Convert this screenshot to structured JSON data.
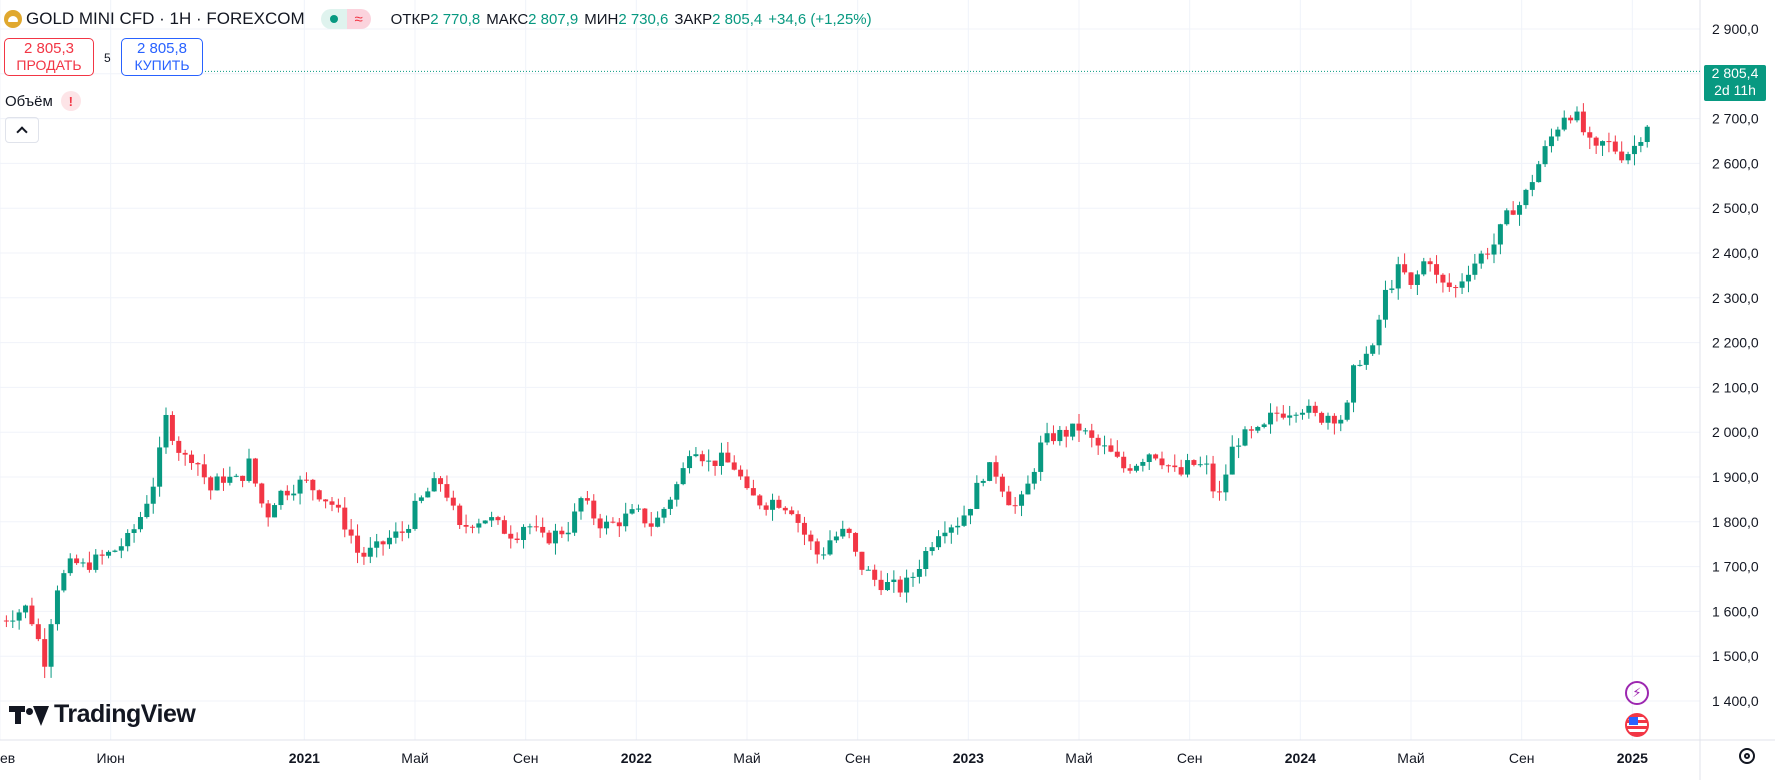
{
  "header": {
    "symbol_title": "GOLD MINI CFD · 1H · FOREXCOM",
    "ohlc": [
      {
        "key": "ОТКР",
        "value": "2 770,8"
      },
      {
        "key": "МАКС",
        "value": "2 807,9"
      },
      {
        "key": "МИН",
        "value": "2 730,6"
      },
      {
        "key": "ЗАКР",
        "value": "2 805,4"
      }
    ],
    "change": "+34,6 (+1,25%)",
    "pill_icon": "approx-icon"
  },
  "trade": {
    "sell_price": "2 805,3",
    "sell_label": "ПРОДАТЬ",
    "spread": "5",
    "buy_price": "2 805,8",
    "buy_label": "КУПИТЬ"
  },
  "volume_label": "Объём",
  "warning_mark": "!",
  "last_price_tag": {
    "price": "2 805,4",
    "countdown": "2d 11h"
  },
  "brand": "TradingView",
  "colors": {
    "up": "#089981",
    "down": "#f23645",
    "grid": "#f0f3fa",
    "text": "#131722"
  },
  "chart_data": {
    "type": "candlestick",
    "title": "",
    "xlabel": "",
    "ylabel": "",
    "y_range": [
      1350,
      2960
    ],
    "x_range": [
      "2020-02",
      "2025-03"
    ],
    "y_ticks": [
      "2 900,0",
      "2 800,0",
      "2 700,0",
      "2 600,0",
      "2 500,0",
      "2 400,0",
      "2 300,0",
      "2 200,0",
      "2 100,0",
      "2 000,0",
      "1 900,0",
      "1 800,0",
      "1 700,0",
      "1 600,0",
      "1 500,0",
      "1 400,0"
    ],
    "x_ticks": [
      {
        "t": "2020-02",
        "label": "ев"
      },
      {
        "t": "2020-06",
        "label": "Июн"
      },
      {
        "t": "2021-01",
        "label": "2021"
      },
      {
        "t": "2021-05",
        "label": "Май"
      },
      {
        "t": "2021-09",
        "label": "Сен"
      },
      {
        "t": "2022-01",
        "label": "2022"
      },
      {
        "t": "2022-05",
        "label": "Май"
      },
      {
        "t": "2022-09",
        "label": "Сен"
      },
      {
        "t": "2023-01",
        "label": "2023"
      },
      {
        "t": "2023-05",
        "label": "Май"
      },
      {
        "t": "2023-09",
        "label": "Сен"
      },
      {
        "t": "2024-01",
        "label": "2024"
      },
      {
        "t": "2024-05",
        "label": "Май"
      },
      {
        "t": "2024-09",
        "label": "Сен"
      },
      {
        "t": "2025-01",
        "label": "2025"
      }
    ],
    "bold_x_labels": [
      "2021",
      "2022",
      "2023",
      "2024",
      "2025"
    ],
    "last_price": 2805.4,
    "grid": true,
    "path_points": [
      [
        "2020-02",
        1580
      ],
      [
        "2020-03",
        1610
      ],
      [
        "2020-03-20",
        1490
      ],
      [
        "2020-04",
        1650
      ],
      [
        "2020-04-20",
        1710
      ],
      [
        "2020-05",
        1700
      ],
      [
        "2020-06",
        1730
      ],
      [
        "2020-06-20",
        1760
      ],
      [
        "2020-07",
        1800
      ],
      [
        "2020-07-20",
        1900
      ],
      [
        "2020-08",
        2030
      ],
      [
        "2020-08-20",
        1940
      ],
      [
        "2020-09",
        1950
      ],
      [
        "2020-09-20",
        1870
      ],
      [
        "2020-10",
        1900
      ],
      [
        "2020-10-20",
        1890
      ],
      [
        "2020-11",
        1930
      ],
      [
        "2020-11-20",
        1810
      ],
      [
        "2020-12",
        1860
      ],
      [
        "2020-12-20",
        1880
      ],
      [
        "2021-01",
        1890
      ],
      [
        "2021-01-20",
        1860
      ],
      [
        "2021-02",
        1840
      ],
      [
        "2021-02-20",
        1780
      ],
      [
        "2021-03",
        1720
      ],
      [
        "2021-03-20",
        1740
      ],
      [
        "2021-04",
        1760
      ],
      [
        "2021-04-20",
        1780
      ],
      [
        "2021-05",
        1830
      ],
      [
        "2021-05-20",
        1880
      ],
      [
        "2021-06",
        1890
      ],
      [
        "2021-06-20",
        1780
      ],
      [
        "2021-07",
        1800
      ],
      [
        "2021-07-20",
        1810
      ],
      [
        "2021-08",
        1790
      ],
      [
        "2021-08-20",
        1770
      ],
      [
        "2021-09",
        1800
      ],
      [
        "2021-09-20",
        1760
      ],
      [
        "2021-10",
        1770
      ],
      [
        "2021-10-20",
        1790
      ],
      [
        "2021-11",
        1850
      ],
      [
        "2021-11-20",
        1800
      ],
      [
        "2021-12",
        1790
      ],
      [
        "2021-12-20",
        1810
      ],
      [
        "2022-01",
        1820
      ],
      [
        "2022-01-20",
        1790
      ],
      [
        "2022-02",
        1830
      ],
      [
        "2022-02-20",
        1900
      ],
      [
        "2022-03",
        1980
      ],
      [
        "2022-03-20",
        1930
      ],
      [
        "2022-04",
        1940
      ],
      [
        "2022-04-20",
        1920
      ],
      [
        "2022-05",
        1860
      ],
      [
        "2022-05-20",
        1840
      ],
      [
        "2022-06",
        1850
      ],
      [
        "2022-06-20",
        1830
      ],
      [
        "2022-07",
        1780
      ],
      [
        "2022-07-20",
        1720
      ],
      [
        "2022-08",
        1760
      ],
      [
        "2022-08-20",
        1780
      ],
      [
        "2022-09",
        1710
      ],
      [
        "2022-09-20",
        1670
      ],
      [
        "2022-10",
        1660
      ],
      [
        "2022-10-20",
        1650
      ],
      [
        "2022-11",
        1680
      ],
      [
        "2022-11-20",
        1750
      ],
      [
        "2022-12",
        1790
      ],
      [
        "2022-12-20",
        1800
      ],
      [
        "2023-01",
        1830
      ],
      [
        "2023-01-20",
        1920
      ],
      [
        "2023-02",
        1910
      ],
      [
        "2023-02-20",
        1830
      ],
      [
        "2023-03",
        1850
      ],
      [
        "2023-03-20",
        1970
      ],
      [
        "2023-04",
        1990
      ],
      [
        "2023-04-20",
        2000
      ],
      [
        "2023-05",
        2010
      ],
      [
        "2023-05-20",
        1970
      ],
      [
        "2023-06",
        1960
      ],
      [
        "2023-06-20",
        1920
      ],
      [
        "2023-07",
        1930
      ],
      [
        "2023-07-20",
        1960
      ],
      [
        "2023-08",
        1940
      ],
      [
        "2023-08-20",
        1900
      ],
      [
        "2023-09",
        1930
      ],
      [
        "2023-09-20",
        1920
      ],
      [
        "2023-10",
        1840
      ],
      [
        "2023-10-20",
        1980
      ],
      [
        "2023-11",
        1990
      ],
      [
        "2023-11-20",
        2000
      ],
      [
        "2023-12",
        2040
      ],
      [
        "2023-12-20",
        2050
      ],
      [
        "2024-01",
        2060
      ],
      [
        "2024-01-20",
        2030
      ],
      [
        "2024-02",
        2040
      ],
      [
        "2024-02-20",
        2030
      ],
      [
        "2024-03",
        2160
      ],
      [
        "2024-03-20",
        2180
      ],
      [
        "2024-04",
        2300
      ],
      [
        "2024-04-20",
        2370
      ],
      [
        "2024-05",
        2320
      ],
      [
        "2024-05-20",
        2400
      ],
      [
        "2024-06",
        2330
      ],
      [
        "2024-06-20",
        2320
      ],
      [
        "2024-07",
        2360
      ],
      [
        "2024-07-20",
        2400
      ],
      [
        "2024-08",
        2420
      ],
      [
        "2024-08-20",
        2500
      ],
      [
        "2024-09",
        2510
      ],
      [
        "2024-09-20",
        2600
      ],
      [
        "2024-10",
        2650
      ],
      [
        "2024-10-20",
        2720
      ],
      [
        "2024-11",
        2700
      ],
      [
        "2024-11-20",
        2620
      ],
      [
        "2024-12",
        2650
      ],
      [
        "2024-12-20",
        2620
      ],
      [
        "2025-01",
        2630
      ],
      [
        "2025-01-20",
        2700
      ],
      [
        "2025-02",
        2740
      ],
      [
        "2025-02-07",
        2805
      ]
    ]
  }
}
